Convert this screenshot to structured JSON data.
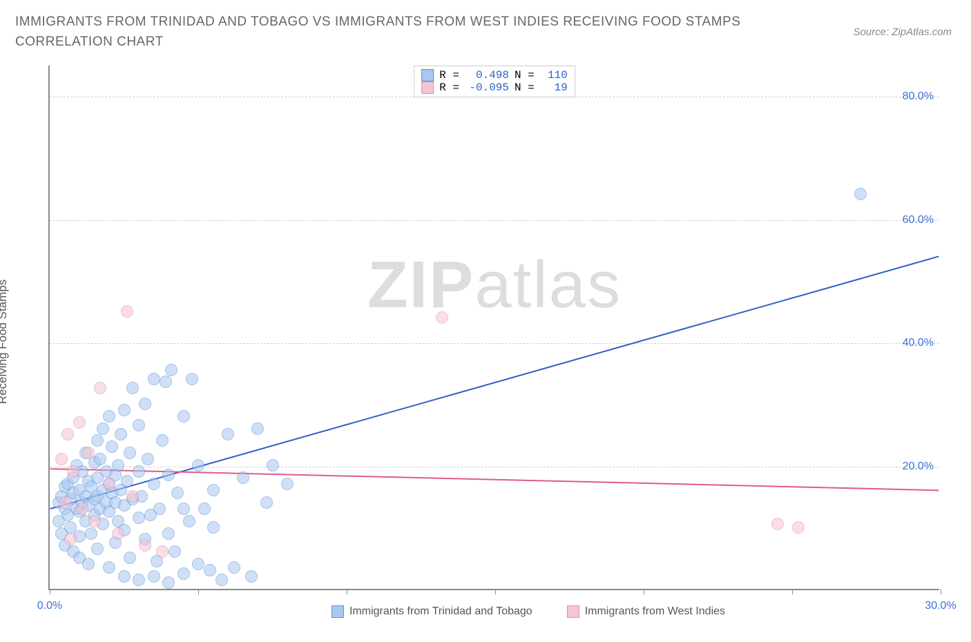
{
  "title": "IMMIGRANTS FROM TRINIDAD AND TOBAGO VS IMMIGRANTS FROM WEST INDIES RECEIVING FOOD STAMPS CORRELATION CHART",
  "source": "Source: ZipAtlas.com",
  "watermark_zip": "ZIP",
  "watermark_atlas": "atlas",
  "yaxis_label": "Receiving Food Stamps",
  "chart": {
    "type": "scatter",
    "xlim": [
      0,
      30
    ],
    "ylim": [
      0,
      85
    ],
    "y_ticks": [
      20,
      40,
      60,
      80
    ],
    "y_tick_labels": [
      "20.0%",
      "40.0%",
      "60.0%",
      "80.0%"
    ],
    "x_ticks": [
      0,
      5,
      10,
      15,
      20,
      25,
      30
    ],
    "x_tick_labels_show": {
      "0": "0.0%",
      "30": "30.0%"
    },
    "grid_color": "#d0d0d0",
    "axis_color": "#888888",
    "background_color": "#ffffff",
    "point_radius": 9,
    "point_opacity": 0.55,
    "series": [
      {
        "name": "Immigrants from Trinidad and Tobago",
        "color_fill": "#a8c7f0",
        "color_stroke": "#5a8fd8",
        "R": "0.498",
        "N": "110",
        "trend": {
          "x1": 0,
          "y1": 13.0,
          "x2": 30,
          "y2": 54.0,
          "color": "#2b5fc9",
          "width": 2
        },
        "points": [
          [
            0.3,
            14
          ],
          [
            0.4,
            15
          ],
          [
            0.5,
            13
          ],
          [
            0.5,
            16.5
          ],
          [
            0.6,
            12
          ],
          [
            0.6,
            17
          ],
          [
            0.7,
            14.5
          ],
          [
            0.7,
            10
          ],
          [
            0.8,
            15.5
          ],
          [
            0.8,
            18
          ],
          [
            0.9,
            13
          ],
          [
            0.9,
            20
          ],
          [
            1.0,
            12.5
          ],
          [
            1.0,
            16
          ],
          [
            1.0,
            8.5
          ],
          [
            1.1,
            14
          ],
          [
            1.1,
            19
          ],
          [
            1.2,
            15
          ],
          [
            1.2,
            11
          ],
          [
            1.2,
            22
          ],
          [
            1.3,
            13.5
          ],
          [
            1.3,
            17.5
          ],
          [
            1.4,
            16.5
          ],
          [
            1.4,
            9
          ],
          [
            1.5,
            14.5
          ],
          [
            1.5,
            20.5
          ],
          [
            1.5,
            12
          ],
          [
            1.6,
            18
          ],
          [
            1.6,
            15
          ],
          [
            1.6,
            24
          ],
          [
            1.7,
            13
          ],
          [
            1.7,
            21
          ],
          [
            1.8,
            16
          ],
          [
            1.8,
            10.5
          ],
          [
            1.8,
            26
          ],
          [
            1.9,
            14
          ],
          [
            1.9,
            19
          ],
          [
            2.0,
            17
          ],
          [
            2.0,
            12.5
          ],
          [
            2.0,
            28
          ],
          [
            2.1,
            15.5
          ],
          [
            2.1,
            23
          ],
          [
            2.2,
            14
          ],
          [
            2.2,
            18.5
          ],
          [
            2.2,
            7.5
          ],
          [
            2.3,
            20
          ],
          [
            2.3,
            11
          ],
          [
            2.4,
            25
          ],
          [
            2.4,
            16
          ],
          [
            2.5,
            13.5
          ],
          [
            2.5,
            29
          ],
          [
            2.5,
            9.5
          ],
          [
            2.6,
            17.5
          ],
          [
            2.7,
            22
          ],
          [
            2.7,
            5
          ],
          [
            2.8,
            14.5
          ],
          [
            2.8,
            32.5
          ],
          [
            3.0,
            19
          ],
          [
            3.0,
            11.5
          ],
          [
            3.0,
            26.5
          ],
          [
            3.1,
            15
          ],
          [
            3.2,
            8
          ],
          [
            3.2,
            30
          ],
          [
            3.3,
            21
          ],
          [
            3.4,
            12
          ],
          [
            3.5,
            34
          ],
          [
            3.5,
            17
          ],
          [
            3.6,
            4.5
          ],
          [
            3.7,
            13
          ],
          [
            3.8,
            24
          ],
          [
            3.9,
            33.5
          ],
          [
            4.0,
            9
          ],
          [
            4.0,
            18.5
          ],
          [
            4.1,
            35.5
          ],
          [
            4.2,
            6
          ],
          [
            4.3,
            15.5
          ],
          [
            4.5,
            28
          ],
          [
            4.5,
            2.5
          ],
          [
            4.7,
            11
          ],
          [
            4.8,
            34
          ],
          [
            5.0,
            20
          ],
          [
            5.0,
            4
          ],
          [
            5.2,
            13
          ],
          [
            5.4,
            3
          ],
          [
            5.5,
            16
          ],
          [
            5.8,
            1.5
          ],
          [
            6.0,
            25
          ],
          [
            6.2,
            3.5
          ],
          [
            6.5,
            18
          ],
          [
            6.8,
            2
          ],
          [
            7.0,
            26
          ],
          [
            7.3,
            14
          ],
          [
            7.5,
            20
          ],
          [
            8.0,
            17
          ],
          [
            27.3,
            64
          ],
          [
            0.3,
            11
          ],
          [
            0.4,
            9
          ],
          [
            0.5,
            7
          ],
          [
            0.8,
            6
          ],
          [
            1.0,
            5
          ],
          [
            1.3,
            4
          ],
          [
            1.6,
            6.5
          ],
          [
            2.0,
            3.5
          ],
          [
            2.5,
            2
          ],
          [
            3.0,
            1.5
          ],
          [
            3.5,
            2
          ],
          [
            4.0,
            1
          ],
          [
            4.5,
            13
          ],
          [
            5.5,
            10
          ]
        ]
      },
      {
        "name": "Immigrants from West Indies",
        "color_fill": "#f5c4d3",
        "color_stroke": "#e38bab",
        "R": "-0.095",
        "N": "19",
        "trend": {
          "x1": 0,
          "y1": 19.5,
          "x2": 30,
          "y2": 16.0,
          "color": "#e05a8a",
          "width": 2
        },
        "points": [
          [
            0.4,
            21
          ],
          [
            0.5,
            14
          ],
          [
            0.6,
            25
          ],
          [
            0.7,
            8
          ],
          [
            0.8,
            19
          ],
          [
            1.0,
            27
          ],
          [
            1.1,
            13
          ],
          [
            1.3,
            22
          ],
          [
            1.5,
            11
          ],
          [
            1.7,
            32.5
          ],
          [
            2.0,
            17
          ],
          [
            2.3,
            9
          ],
          [
            2.6,
            45
          ],
          [
            2.8,
            15
          ],
          [
            3.2,
            7
          ],
          [
            3.8,
            6
          ],
          [
            13.2,
            44
          ],
          [
            24.5,
            10.5
          ],
          [
            25.2,
            10
          ]
        ]
      }
    ]
  },
  "stats_legend": {
    "row1": {
      "r_label": "R =",
      "n_label": "N ="
    },
    "labels": {
      "r": "R =",
      "n": "N ="
    }
  }
}
